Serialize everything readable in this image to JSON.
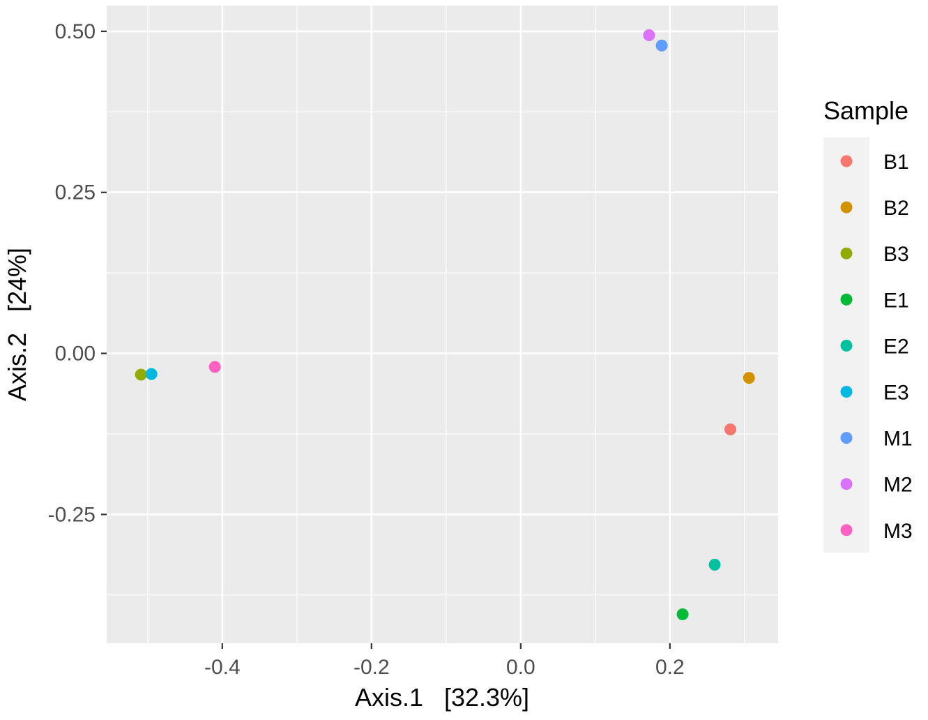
{
  "chart_data": {
    "type": "scatter",
    "title": "",
    "xlabel": "Axis.1   [32.3%]",
    "ylabel": "Axis.2   [24%]",
    "xlim": [
      -0.555,
      0.345
    ],
    "ylim": [
      -0.45,
      0.54
    ],
    "x_ticks": [
      -0.4,
      -0.2,
      0.0,
      0.2
    ],
    "x_tick_labels": [
      "-0.4",
      "-0.2",
      "0.0",
      "0.2"
    ],
    "y_ticks": [
      0.5,
      0.25,
      0.0,
      -0.25
    ],
    "y_tick_labels": [
      "0.50",
      "0.25",
      "0.00",
      "-0.25"
    ],
    "grid": true,
    "background": "#ebebeb",
    "legend": {
      "title": "Sample",
      "placement": "right"
    },
    "series": [
      {
        "name": "B1",
        "color": "#F8766D",
        "points": [
          [
            0.281,
            -0.118
          ]
        ]
      },
      {
        "name": "B2",
        "color": "#D39200",
        "points": [
          [
            0.306,
            -0.038
          ]
        ]
      },
      {
        "name": "B3",
        "color": "#93AA00",
        "points": [
          [
            -0.509,
            -0.033
          ]
        ]
      },
      {
        "name": "E1",
        "color": "#00BA38",
        "points": [
          [
            0.217,
            -0.405
          ]
        ]
      },
      {
        "name": "E2",
        "color": "#00C19F",
        "points": [
          [
            0.26,
            -0.328
          ]
        ]
      },
      {
        "name": "E3",
        "color": "#00B9E3",
        "points": [
          [
            -0.495,
            -0.032
          ]
        ]
      },
      {
        "name": "M1",
        "color": "#619CFF",
        "points": [
          [
            0.189,
            0.478
          ]
        ]
      },
      {
        "name": "M2",
        "color": "#DB72FB",
        "points": [
          [
            0.172,
            0.494
          ]
        ]
      },
      {
        "name": "M3",
        "color": "#FF61C3",
        "points": [
          [
            -0.41,
            -0.021
          ]
        ]
      }
    ]
  }
}
